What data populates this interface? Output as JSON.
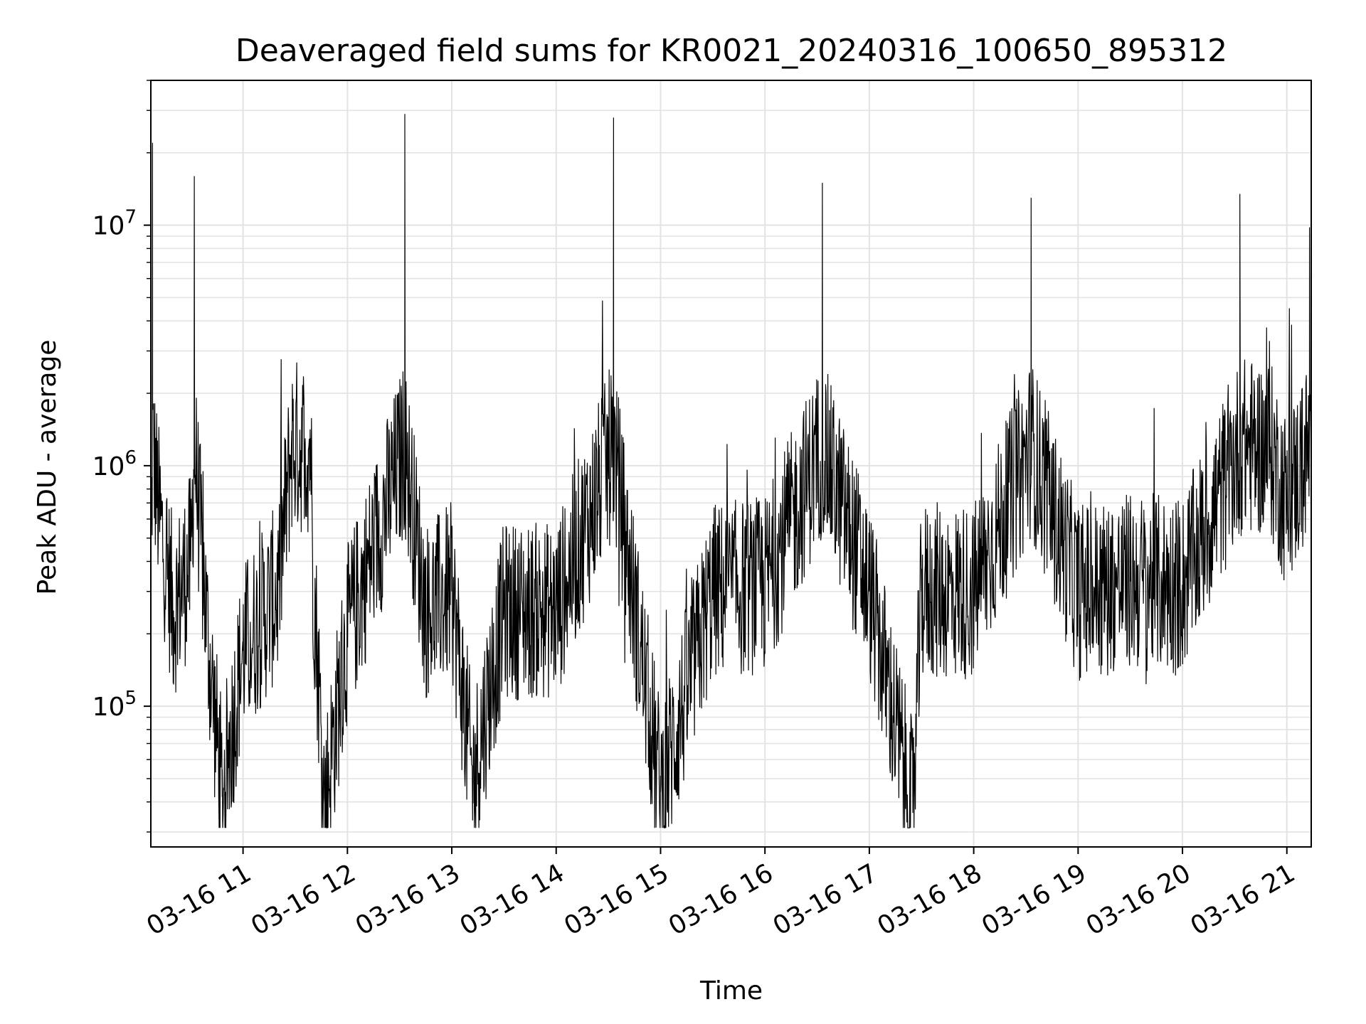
{
  "chart_data": {
    "type": "line",
    "title": "Deaveraged field sums for KR0021_20240316_100650_895312",
    "xlabel": "Time",
    "ylabel": "Peak ADU - average",
    "y_scale": "log",
    "ylim": [
      26000,
      40000000
    ],
    "xlim": [
      "03-16 10:07",
      "03-16 21:14"
    ],
    "grid": true,
    "line_color": "#000000",
    "grid_color": "#e3e3e3",
    "x_ticks": [
      {
        "t": "03-16 11:00",
        "label": "03-16 11"
      },
      {
        "t": "03-16 12:00",
        "label": "03-16 12"
      },
      {
        "t": "03-16 13:00",
        "label": "03-16 13"
      },
      {
        "t": "03-16 14:00",
        "label": "03-16 14"
      },
      {
        "t": "03-16 15:00",
        "label": "03-16 15"
      },
      {
        "t": "03-16 16:00",
        "label": "03-16 16"
      },
      {
        "t": "03-16 17:00",
        "label": "03-16 17"
      },
      {
        "t": "03-16 18:00",
        "label": "03-16 18"
      },
      {
        "t": "03-16 19:00",
        "label": "03-16 19"
      },
      {
        "t": "03-16 20:00",
        "label": "03-16 20"
      },
      {
        "t": "03-16 21:00",
        "label": "03-16 21"
      }
    ],
    "y_ticks": [
      {
        "value": 100000,
        "base": "10",
        "exp": "5"
      },
      {
        "value": 1000000,
        "base": "10",
        "exp": "6"
      },
      {
        "value": 10000000,
        "base": "10",
        "exp": "7"
      }
    ],
    "series": [
      {
        "points": [
          {
            "t": "03-16 10:07",
            "y": 350000
          },
          {
            "t": "03-16 10:08",
            "y": 22000000
          },
          {
            "t": "03-16 10:12",
            "y": 600000
          },
          {
            "t": "03-16 10:20",
            "y": 250000
          },
          {
            "t": "03-16 10:30",
            "y": 400000
          },
          {
            "t": "03-16 10:32",
            "y": 16000000
          },
          {
            "t": "03-16 10:40",
            "y": 180000
          },
          {
            "t": "03-16 10:48",
            "y": 42000
          },
          {
            "t": "03-16 11:00",
            "y": 170000
          },
          {
            "t": "03-16 11:20",
            "y": 300000
          },
          {
            "t": "03-16 11:28",
            "y": 1400000
          },
          {
            "t": "03-16 11:40",
            "y": 400000
          },
          {
            "t": "03-16 11:39",
            "y": 1300000
          },
          {
            "t": "03-16 11:47",
            "y": 39000
          },
          {
            "t": "03-16 12:00",
            "y": 200000
          },
          {
            "t": "03-16 12:33",
            "y": 29000000
          },
          {
            "t": "03-16 12:45",
            "y": 250000
          },
          {
            "t": "03-16 13:00",
            "y": 300000
          },
          {
            "t": "03-16 13:12",
            "y": 48000
          },
          {
            "t": "03-16 13:30",
            "y": 250000
          },
          {
            "t": "03-16 14:00",
            "y": 250000
          },
          {
            "t": "03-16 14:33",
            "y": 28000000
          },
          {
            "t": "03-16 14:45",
            "y": 260000
          },
          {
            "t": "03-16 15:00",
            "y": 44000
          },
          {
            "t": "03-16 15:30",
            "y": 300000
          },
          {
            "t": "03-16 16:00",
            "y": 320000
          },
          {
            "t": "03-16 16:33",
            "y": 15000000
          },
          {
            "t": "03-16 17:00",
            "y": 300000
          },
          {
            "t": "03-16 17:25",
            "y": 36000
          },
          {
            "t": "03-16 17:30",
            "y": 300000
          },
          {
            "t": "03-16 18:00",
            "y": 300000
          },
          {
            "t": "03-16 18:33",
            "y": 13000000
          },
          {
            "t": "03-16 19:00",
            "y": 300000
          },
          {
            "t": "03-16 19:30",
            "y": 330000
          },
          {
            "t": "03-16 20:00",
            "y": 320000
          },
          {
            "t": "03-16 20:33",
            "y": 13500000
          },
          {
            "t": "03-16 20:50",
            "y": 3300000
          },
          {
            "t": "03-16 21:00",
            "y": 700000
          },
          {
            "t": "03-16 21:13",
            "y": 9800000
          },
          {
            "t": "03-16 21:14",
            "y": 600000
          }
        ]
      }
    ]
  }
}
